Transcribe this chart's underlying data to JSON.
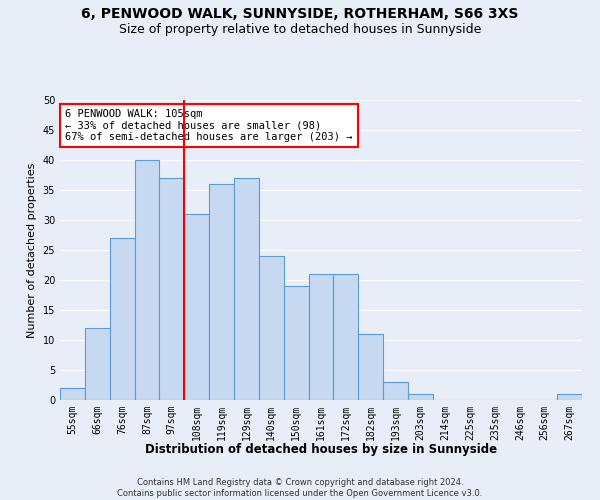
{
  "title1": "6, PENWOOD WALK, SUNNYSIDE, ROTHERHAM, S66 3XS",
  "title2": "Size of property relative to detached houses in Sunnyside",
  "xlabel": "Distribution of detached houses by size in Sunnyside",
  "ylabel": "Number of detached properties",
  "bin_labels": [
    "55sqm",
    "66sqm",
    "76sqm",
    "87sqm",
    "97sqm",
    "108sqm",
    "119sqm",
    "129sqm",
    "140sqm",
    "150sqm",
    "161sqm",
    "172sqm",
    "182sqm",
    "193sqm",
    "203sqm",
    "214sqm",
    "225sqm",
    "235sqm",
    "246sqm",
    "256sqm",
    "267sqm"
  ],
  "bar_heights": [
    2,
    12,
    27,
    40,
    37,
    31,
    36,
    37,
    24,
    19,
    21,
    21,
    11,
    3,
    1,
    0,
    0,
    0,
    0,
    0,
    1
  ],
  "bar_color": "#c6d9f1",
  "bar_edge_color": "#5b9bd5",
  "red_line_index": 5,
  "annotation_text": "6 PENWOOD WALK: 105sqm\n← 33% of detached houses are smaller (98)\n67% of semi-detached houses are larger (203) →",
  "annotation_box_color": "white",
  "annotation_box_edge_color": "red",
  "ylim": [
    0,
    50
  ],
  "yticks": [
    0,
    5,
    10,
    15,
    20,
    25,
    30,
    35,
    40,
    45,
    50
  ],
  "background_color": "#e8eef7",
  "grid_color": "white",
  "footnote": "Contains HM Land Registry data © Crown copyright and database right 2024.\nContains public sector information licensed under the Open Government Licence v3.0.",
  "title1_fontsize": 10,
  "title2_fontsize": 9,
  "xlabel_fontsize": 8.5,
  "ylabel_fontsize": 8,
  "annotation_fontsize": 7.5,
  "tick_fontsize": 7,
  "footnote_fontsize": 6
}
